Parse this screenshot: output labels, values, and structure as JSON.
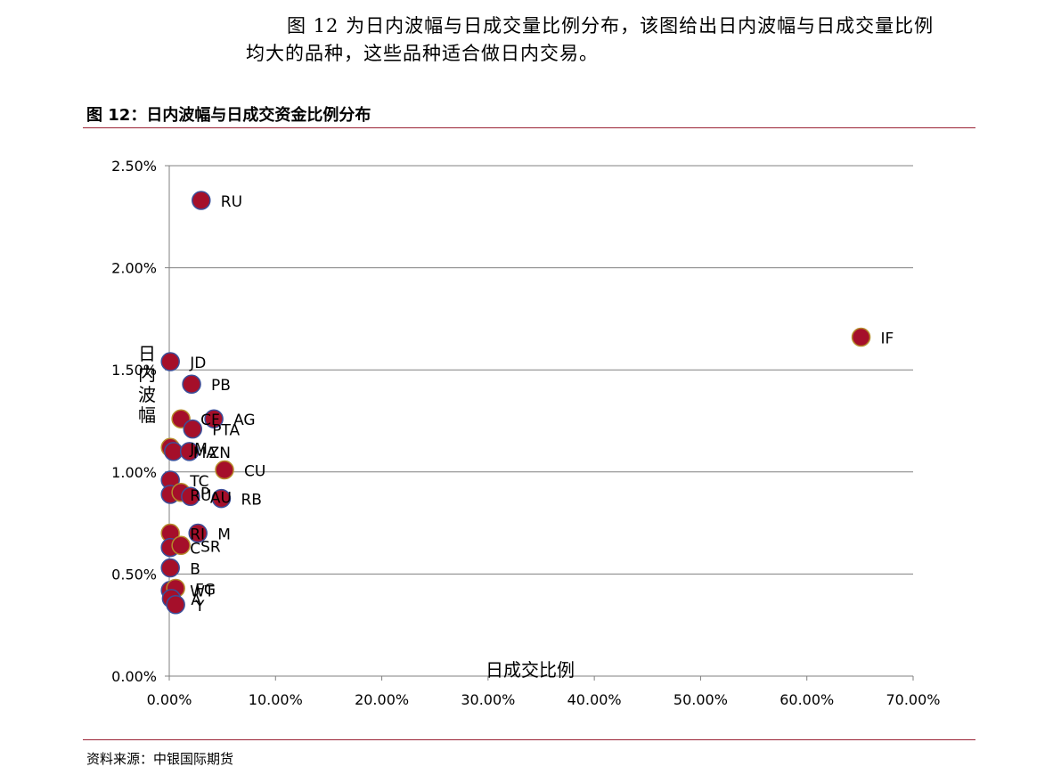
{
  "intro": {
    "line1": "图 12 为日内波幅与日成交量比例分布，该图给出日内波幅与日成交量比例",
    "line2": "均大的品种，这些品种适合做日内交易。"
  },
  "figure_title": "图 12：日内波幅与日成交资金比例分布",
  "source": "资料来源：中银国际期货",
  "colors": {
    "marker_fill": "#a50f2a",
    "marker_stroke_a": "#3b4f9a",
    "marker_stroke_b": "#b58b2b",
    "grid": "#808080",
    "rule": "#9b2335"
  },
  "chart_data": {
    "type": "scatter",
    "xlabel": "日成交比例",
    "ylabel": "日内波幅",
    "xlim": [
      0,
      0.7
    ],
    "ylim": [
      0,
      0.025
    ],
    "x_ticks": [
      "0.00%",
      "10.00%",
      "20.00%",
      "30.00%",
      "40.00%",
      "50.00%",
      "60.00%",
      "70.00%"
    ],
    "y_ticks": [
      "0.00%",
      "0.50%",
      "1.00%",
      "1.50%",
      "2.00%",
      "2.50%"
    ],
    "grid": "horizontal",
    "points": [
      {
        "label": "RU",
        "x": 0.03,
        "y": 0.0233
      },
      {
        "label": "IF",
        "x": 0.651,
        "y": 0.0166
      },
      {
        "label": "JD",
        "x": 0.001,
        "y": 0.0154
      },
      {
        "label": "PB",
        "x": 0.021,
        "y": 0.0143
      },
      {
        "label": "CF",
        "x": 0.011,
        "y": 0.0126
      },
      {
        "label": "AG",
        "x": 0.042,
        "y": 0.0126
      },
      {
        "label": "PTA",
        "x": 0.022,
        "y": 0.0121
      },
      {
        "label": "JM",
        "x": 0.001,
        "y": 0.0112
      },
      {
        "label": "MA",
        "x": 0.004,
        "y": 0.011
      },
      {
        "label": "ZN",
        "x": 0.019,
        "y": 0.011
      },
      {
        "label": "CU",
        "x": 0.052,
        "y": 0.0101
      },
      {
        "label": "TC",
        "x": 0.001,
        "y": 0.0096
      },
      {
        "label": "RU",
        "x": 0.001,
        "y": 0.0089
      },
      {
        "label": "P",
        "x": 0.011,
        "y": 0.009
      },
      {
        "label": "AU",
        "x": 0.02,
        "y": 0.0088
      },
      {
        "label": "RB",
        "x": 0.049,
        "y": 0.0087
      },
      {
        "label": "RI",
        "x": 0.001,
        "y": 0.007
      },
      {
        "label": "M",
        "x": 0.027,
        "y": 0.007
      },
      {
        "label": "C",
        "x": 0.001,
        "y": 0.0063
      },
      {
        "label": "SR",
        "x": 0.011,
        "y": 0.0064
      },
      {
        "label": "B",
        "x": 0.001,
        "y": 0.0053
      },
      {
        "label": "WT",
        "x": 0.001,
        "y": 0.0042
      },
      {
        "label": "FG",
        "x": 0.006,
        "y": 0.0043
      },
      {
        "label": "A",
        "x": 0.002,
        "y": 0.0038
      },
      {
        "label": "Y",
        "x": 0.006,
        "y": 0.0035
      }
    ]
  }
}
